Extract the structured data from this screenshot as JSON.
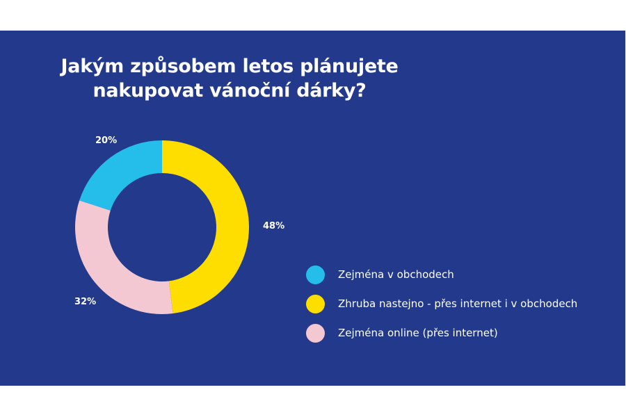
{
  "title_line1": "Jakým způsobem letos plánujete",
  "title_line2": "nakupovat vánoční dárky?",
  "colors": {
    "background": "#233a8c",
    "blue": "#25bde9",
    "yellow": "#fedd00",
    "pink": "#f3c8d3"
  },
  "labels": {
    "blue_pct": "20%",
    "yellow_pct": "48%",
    "pink_pct": "32%"
  },
  "legend": [
    {
      "label": "Zejména v obchodech",
      "color": "#25bde9"
    },
    {
      "label": "Zhruba nastejno - přes internet i v obchodech",
      "color": "#fedd00"
    },
    {
      "label": "Zejména online (přes internet)",
      "color": "#f3c8d3"
    }
  ],
  "chart_data": {
    "type": "pie",
    "subtype": "donut",
    "title": "Jakým způsobem letos plánujete nakupovat vánoční dárky?",
    "categories": [
      "Zejména v obchodech",
      "Zhruba nastejno - přes internet i v obchodech",
      "Zejména online (přes internet)"
    ],
    "values": [
      20,
      48,
      32
    ],
    "unit": "%",
    "colors": [
      "#25bde9",
      "#fedd00",
      "#f3c8d3"
    ],
    "legend_position": "right"
  }
}
